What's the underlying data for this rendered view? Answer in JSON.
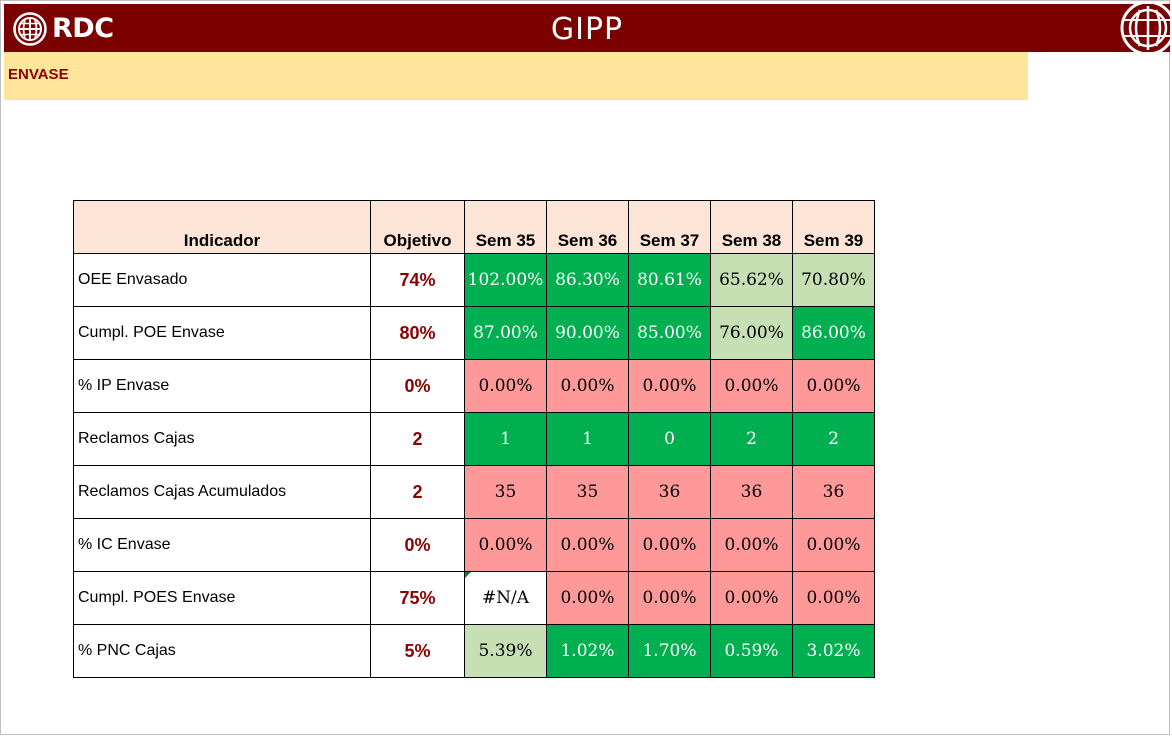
{
  "header": {
    "logo_text": "RDC",
    "title": "GIPP",
    "logo_icon": "rdc-globe-logo",
    "right_icon": "rdc-emblem-logo"
  },
  "section": {
    "label": "ENVASE"
  },
  "colors": {
    "header_bg": "#7b0000",
    "section_bg": "#ffe599",
    "table_header_bg": "#fce4d6",
    "meets_target": "#00b050",
    "near_target": "#c6e0b4",
    "below_target": "#ff9999",
    "objective_text": "#8b0000"
  },
  "table": {
    "columns": [
      "Indicador",
      "Objetivo",
      "Sem 35",
      "Sem 36",
      "Sem 37",
      "Sem 38",
      "Sem 39"
    ],
    "rows": [
      {
        "indicator": "OEE Envasado",
        "objective": "74%",
        "values": [
          "102.00%",
          "86.30%",
          "80.61%",
          "65.62%",
          "70.80%"
        ],
        "status": [
          "green",
          "green",
          "green",
          "lgreen",
          "lgreen"
        ]
      },
      {
        "indicator": "Cumpl. POE Envase",
        "objective": "80%",
        "values": [
          "87.00%",
          "90.00%",
          "85.00%",
          "76.00%",
          "86.00%"
        ],
        "status": [
          "green",
          "green",
          "green",
          "lgreen",
          "green"
        ]
      },
      {
        "indicator": "% IP Envase",
        "objective": "0%",
        "values": [
          "0.00%",
          "0.00%",
          "0.00%",
          "0.00%",
          "0.00%"
        ],
        "status": [
          "red",
          "red",
          "red",
          "red",
          "red"
        ]
      },
      {
        "indicator": "Reclamos Cajas",
        "objective": "2",
        "values": [
          "1",
          "1",
          "0",
          "2",
          "2"
        ],
        "status": [
          "green",
          "green",
          "green",
          "green",
          "green"
        ]
      },
      {
        "indicator": "Reclamos Cajas Acumulados",
        "objective": "2",
        "values": [
          "35",
          "35",
          "36",
          "36",
          "36"
        ],
        "status": [
          "red",
          "red",
          "red",
          "red",
          "red"
        ]
      },
      {
        "indicator": "% IC Envase",
        "objective": "0%",
        "values": [
          "0.00%",
          "0.00%",
          "0.00%",
          "0.00%",
          "0.00%"
        ],
        "status": [
          "red",
          "red",
          "red",
          "red",
          "red"
        ]
      },
      {
        "indicator": "Cumpl. POES Envase",
        "objective": "75%",
        "values": [
          "#N/A",
          "0.00%",
          "0.00%",
          "0.00%",
          "0.00%"
        ],
        "status": [
          "white",
          "red",
          "red",
          "red",
          "red"
        ]
      },
      {
        "indicator": "% PNC Cajas",
        "objective": "5%",
        "values": [
          "5.39%",
          "1.02%",
          "1.70%",
          "0.59%",
          "3.02%"
        ],
        "status": [
          "lgreen",
          "green",
          "green",
          "green",
          "green"
        ]
      }
    ]
  }
}
